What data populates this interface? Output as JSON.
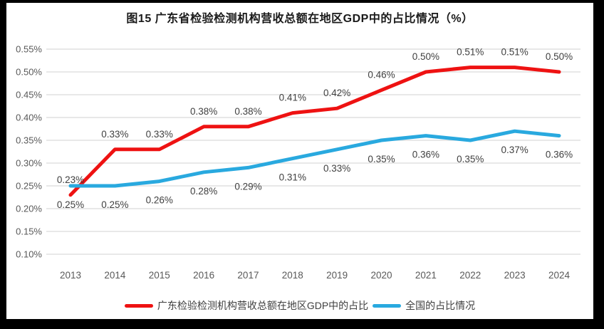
{
  "title": "图15  广东省检验检测机构营收总额在地区GDP中的占比情况（%）",
  "chart_data": {
    "type": "line",
    "title": "图15  广东省检验检测机构营收总额在地区GDP中的占比情况（%）",
    "categories": [
      "2013",
      "2014",
      "2015",
      "2016",
      "2017",
      "2018",
      "2019",
      "2020",
      "2021",
      "2022",
      "2023",
      "2024"
    ],
    "series": [
      {
        "name": "广东检验检测机构营收总额在地区GDP中的占比",
        "color": "#EE1212",
        "values": [
          0.23,
          0.33,
          0.33,
          0.38,
          0.38,
          0.41,
          0.42,
          0.46,
          0.5,
          0.51,
          0.51,
          0.5
        ],
        "labels": [
          "0.23%",
          "0.33%",
          "0.33%",
          "0.38%",
          "0.38%",
          "0.41%",
          "0.42%",
          "0.46%",
          "0.50%",
          "0.51%",
          "0.51%",
          "0.50%"
        ],
        "label_position": "above"
      },
      {
        "name": "全国的占比情况",
        "color": "#29A9DF",
        "values": [
          0.25,
          0.25,
          0.26,
          0.28,
          0.29,
          0.31,
          0.33,
          0.35,
          0.36,
          0.35,
          0.37,
          0.36
        ],
        "labels": [
          "0.25%",
          "0.25%",
          "0.26%",
          "0.28%",
          "0.29%",
          "0.31%",
          "0.33%",
          "0.35%",
          "0.36%",
          "0.35%",
          "0.37%",
          "0.36%"
        ],
        "label_position": "below"
      }
    ],
    "ylabel": "",
    "xlabel": "",
    "ylim": [
      0.1,
      0.55
    ],
    "y_tick_step": 0.05,
    "y_tick_labels": [
      "0.55%",
      "0.50%",
      "0.45%",
      "0.40%",
      "0.35%",
      "0.30%",
      "0.25%",
      "0.20%",
      "0.15%",
      "0.10%"
    ],
    "grid": "horizontal",
    "legend_position": "bottom"
  },
  "colors": {
    "frame": "#000000",
    "card_background": "#ffffff",
    "gridline": "#D9D9D9",
    "axis_text": "#595959",
    "data_label_text": "#3F3F3F",
    "title_text": "#1A1A1A",
    "legend_text": "#3F3F3F"
  }
}
